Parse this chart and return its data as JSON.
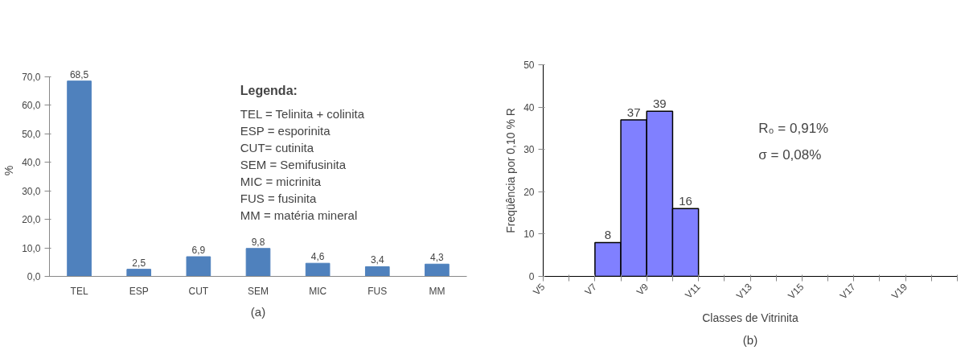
{
  "chart_data": [
    {
      "type": "bar",
      "title": "(a)",
      "ylabel": "%",
      "categories": [
        "TEL",
        "ESP",
        "CUT",
        "SEM",
        "MIC",
        "FUS",
        "MM"
      ],
      "values": [
        68.5,
        2.5,
        6.9,
        9.8,
        4.6,
        3.4,
        4.3
      ],
      "value_labels": [
        "68,5",
        "2,5",
        "6,9",
        "9,8",
        "4,6",
        "3,4",
        "4,3"
      ],
      "color": "#4f81bd",
      "ylim": [
        0,
        70
      ],
      "yticks": [
        {
          "value": 0,
          "label": "0,0"
        },
        {
          "value": 10,
          "label": "10,0"
        },
        {
          "value": 20,
          "label": "20,0"
        },
        {
          "value": 30,
          "label": "30,0"
        },
        {
          "value": 40,
          "label": "40,0"
        },
        {
          "value": 50,
          "label": "50,0"
        },
        {
          "value": 60,
          "label": "60,0"
        },
        {
          "value": 70,
          "label": "70,0"
        }
      ],
      "annotations": [
        "Legenda:",
        "TEL = Telinita + colinita",
        "ESP = esporinita",
        "CUT= cutinita",
        "SEM = Semifusinita",
        "MIC = micrinita",
        "FUS = fusinita",
        "MM = matéria mineral"
      ],
      "grid": false
    },
    {
      "type": "bar",
      "title": "(b)",
      "xlabel": "Classes de Vitrinita",
      "ylabel": "Freqüência por 0,10 % R",
      "categories": [
        "V5",
        null,
        "V7",
        null,
        "V9",
        null,
        "V11",
        null,
        "V13",
        null,
        "V15",
        null,
        "V17",
        null,
        "V19",
        null
      ],
      "values": [
        null,
        null,
        8,
        37,
        39,
        16,
        null,
        null,
        null,
        null,
        null,
        null,
        null,
        null,
        null,
        null
      ],
      "color": "#8080ff",
      "data_labels": true,
      "ylim": [
        0,
        50
      ],
      "yticks": [
        0,
        10,
        20,
        30,
        40,
        50
      ],
      "annotations": [
        "R₀ = 0,91%",
        "σ = 0,08%"
      ],
      "grid": false
    }
  ]
}
